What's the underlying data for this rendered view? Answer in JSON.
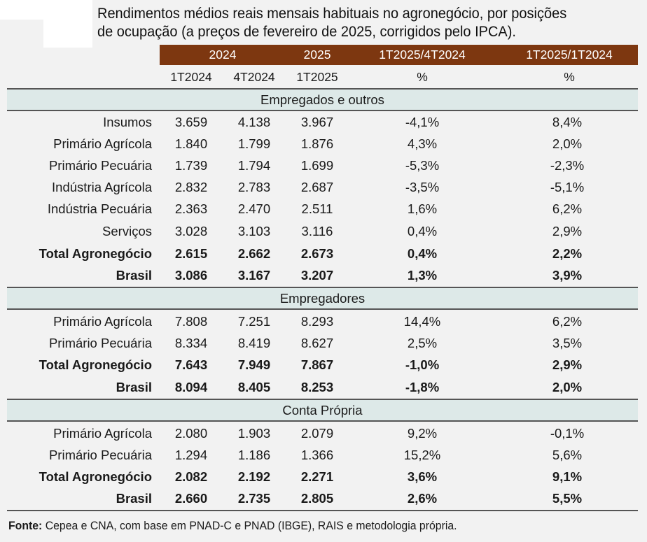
{
  "title_line1": "Rendimentos médios reais mensais habituais no agronegócio, por posições",
  "title_line2": "de ocupação (a preços de fevereiro de 2025, corrigidos pelo IPCA).",
  "header_top": [
    "2024",
    "2025",
    "1T2025/4T2024",
    "1T2025/1T2024"
  ],
  "header_sub": [
    "1T2024",
    "4T2024",
    "1T2025",
    "%",
    "%"
  ],
  "sections": [
    {
      "name": "Empregados e outros",
      "rows": [
        {
          "label": "Insumos",
          "bold": false,
          "values": [
            "3.659",
            "4.138",
            "3.967",
            "-4,1%",
            "8,4%"
          ]
        },
        {
          "label": "Primário Agrícola",
          "bold": false,
          "values": [
            "1.840",
            "1.799",
            "1.876",
            "4,3%",
            "2,0%"
          ]
        },
        {
          "label": "Primário Pecuária",
          "bold": false,
          "values": [
            "1.739",
            "1.794",
            "1.699",
            "-5,3%",
            "-2,3%"
          ]
        },
        {
          "label": "Indústria Agrícola",
          "bold": false,
          "values": [
            "2.832",
            "2.783",
            "2.687",
            "-3,5%",
            "-5,1%"
          ]
        },
        {
          "label": "Indústria Pecuária",
          "bold": false,
          "values": [
            "2.363",
            "2.470",
            "2.511",
            "1,6%",
            "6,2%"
          ]
        },
        {
          "label": "Serviços",
          "bold": false,
          "values": [
            "3.028",
            "3.103",
            "3.116",
            "0,4%",
            "2,9%"
          ]
        },
        {
          "label": "Total Agronegócio",
          "bold": true,
          "values": [
            "2.615",
            "2.662",
            "2.673",
            "0,4%",
            "2,2%"
          ]
        },
        {
          "label": "Brasil",
          "bold": true,
          "values": [
            "3.086",
            "3.167",
            "3.207",
            "1,3%",
            "3,9%"
          ]
        }
      ]
    },
    {
      "name": "Empregadores",
      "rows": [
        {
          "label": "Primário Agrícola",
          "bold": false,
          "values": [
            "7.808",
            "7.251",
            "8.293",
            "14,4%",
            "6,2%"
          ]
        },
        {
          "label": "Primário Pecuária",
          "bold": false,
          "values": [
            "8.334",
            "8.419",
            "8.627",
            "2,5%",
            "3,5%"
          ]
        },
        {
          "label": "Total Agronegócio",
          "bold": true,
          "values": [
            "7.643",
            "7.949",
            "7.867",
            "-1,0%",
            "2,9%"
          ]
        },
        {
          "label": "Brasil",
          "bold": true,
          "values": [
            "8.094",
            "8.405",
            "8.253",
            "-1,8%",
            "2,0%"
          ]
        }
      ]
    },
    {
      "name": "Conta Própria",
      "rows": [
        {
          "label": "Primário Agrícola",
          "bold": false,
          "values": [
            "2.080",
            "1.903",
            "2.079",
            "9,2%",
            "-0,1%"
          ]
        },
        {
          "label": "Primário Pecuária",
          "bold": false,
          "values": [
            "1.294",
            "1.186",
            "1.366",
            "15,2%",
            "5,6%"
          ]
        },
        {
          "label": "Total Agronegócio",
          "bold": true,
          "values": [
            "2.082",
            "2.192",
            "2.271",
            "3,6%",
            "9,1%"
          ]
        },
        {
          "label": "Brasil",
          "bold": true,
          "values": [
            "2.660",
            "2.735",
            "2.805",
            "2,6%",
            "5,5%"
          ]
        }
      ]
    }
  ],
  "footer_label": "Fonte:",
  "footer_text": " Cepea e CNA, com base em PNAD-C e PNAD (IBGE), RAIS e metodologia própria.",
  "colors": {
    "header_bg": "#7d3710",
    "section_bg": "#dde9e8",
    "page_bg": "#f2f2f2"
  }
}
